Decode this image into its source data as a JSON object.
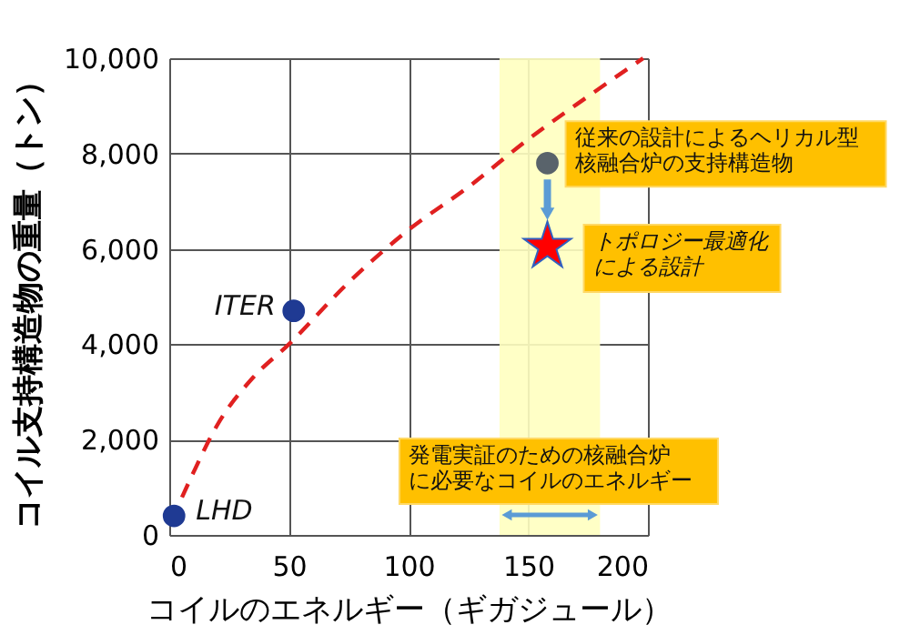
{
  "chart_data": {
    "type": "scatter",
    "xlabel": "コイルのエネルギー（ギガジュール）",
    "ylabel": "コイル支持構造物の重量（トン）",
    "xlim": [
      0,
      200
    ],
    "xticks": [
      0,
      50,
      100,
      150,
      200
    ],
    "ylim": [
      0,
      10000
    ],
    "yticks": [
      {
        "value": 0,
        "label": "0"
      },
      {
        "value": 2000,
        "label": "2,000"
      },
      {
        "value": 4000,
        "label": "4,000"
      },
      {
        "value": 6000,
        "label": "6,000"
      },
      {
        "value": 8000,
        "label": "8,000"
      },
      {
        "value": 10000,
        "label": "10,000"
      }
    ],
    "grid": true,
    "bands": [
      {
        "axis": "x",
        "from": 138,
        "to": 180,
        "color": "#ffffc0",
        "label": "発電実証のための核融合炉に必要なコイルのエネルギー"
      }
    ],
    "series": [
      {
        "type": "line",
        "color": "#e02020",
        "line_style": "dashed",
        "marker": "none",
        "x": [
          1,
          10,
          20,
          35,
          50,
          75,
          100,
          125,
          150,
          175,
          198
        ],
        "values": [
          300,
          1300,
          2300,
          3300,
          4000,
          5300,
          6400,
          7300,
          8300,
          9200,
          10000
        ]
      },
      {
        "name": "LHD",
        "type": "scatter",
        "marker": "circle",
        "color": "#1f3a93",
        "x": [
          2
        ],
        "values": [
          400
        ]
      },
      {
        "name": "ITER",
        "type": "scatter",
        "marker": "circle",
        "color": "#1f3a93",
        "x": [
          52
        ],
        "values": [
          4700
        ]
      },
      {
        "type": "scatter",
        "marker": "circle",
        "color": "#59636b",
        "x": [
          158
        ],
        "values": [
          7800
        ]
      },
      {
        "type": "scatter",
        "marker": "star",
        "color": "#ff0000",
        "x": [
          158
        ],
        "values": [
          6050
        ]
      }
    ],
    "annotations": [
      {
        "text": "従来の設計によるヘリカル型核融合炉の支持構造物",
        "x": 158,
        "y": 7800
      },
      {
        "text": "トポロジー最適化による設計",
        "x": 158,
        "y": 6050
      }
    ]
  }
}
